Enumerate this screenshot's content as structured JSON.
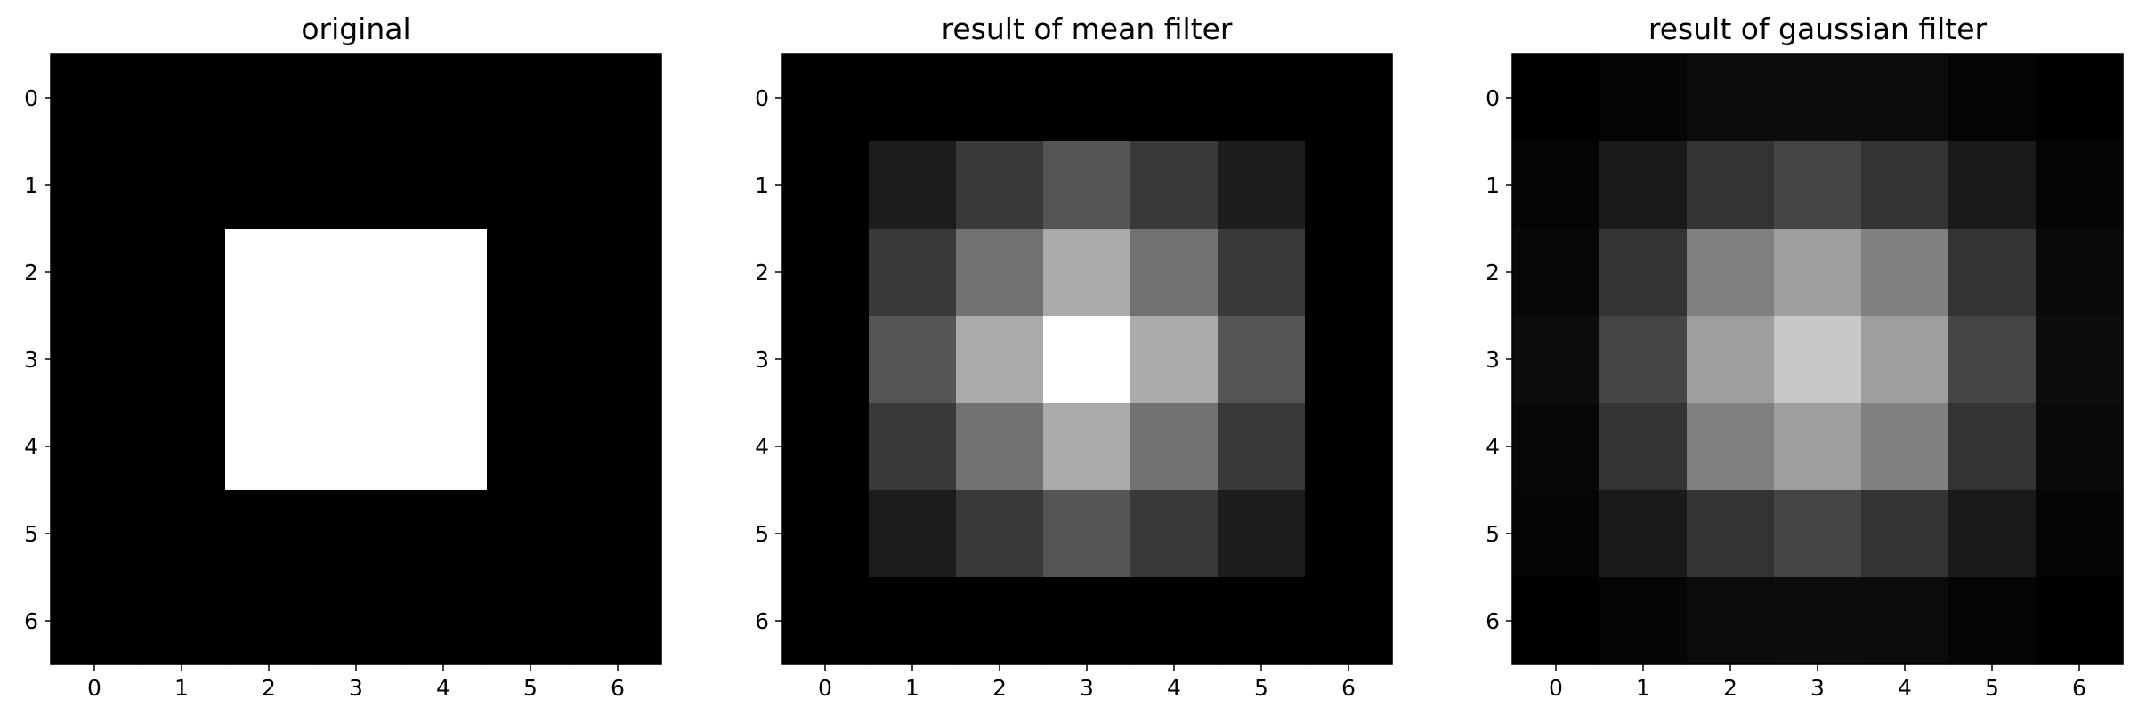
{
  "chart_data": [
    {
      "type": "heatmap",
      "title": "original",
      "colormap": "gray",
      "x_ticks": [
        "0",
        "1",
        "2",
        "3",
        "4",
        "5",
        "6"
      ],
      "y_ticks": [
        "0",
        "1",
        "2",
        "3",
        "4",
        "5",
        "6"
      ],
      "values": [
        [
          0,
          0,
          0,
          0,
          0,
          0,
          0
        ],
        [
          0,
          0,
          0,
          0,
          0,
          0,
          0
        ],
        [
          0,
          0,
          1,
          1,
          1,
          0,
          0
        ],
        [
          0,
          0,
          1,
          1,
          1,
          0,
          0
        ],
        [
          0,
          0,
          1,
          1,
          1,
          0,
          0
        ],
        [
          0,
          0,
          0,
          0,
          0,
          0,
          0
        ],
        [
          0,
          0,
          0,
          0,
          0,
          0,
          0
        ]
      ]
    },
    {
      "type": "heatmap",
      "title": "result of mean filter",
      "colormap": "gray",
      "x_ticks": [
        "0",
        "1",
        "2",
        "3",
        "4",
        "5",
        "6"
      ],
      "y_ticks": [
        "0",
        "1",
        "2",
        "3",
        "4",
        "5",
        "6"
      ],
      "values": [
        [
          0,
          0,
          0,
          0,
          0,
          0,
          0
        ],
        [
          0,
          0.111,
          0.222,
          0.333,
          0.222,
          0.111,
          0
        ],
        [
          0,
          0.222,
          0.444,
          0.667,
          0.444,
          0.222,
          0
        ],
        [
          0,
          0.333,
          0.667,
          1,
          0.667,
          0.333,
          0
        ],
        [
          0,
          0.222,
          0.444,
          0.667,
          0.444,
          0.222,
          0
        ],
        [
          0,
          0.111,
          0.222,
          0.333,
          0.222,
          0.111,
          0
        ],
        [
          0,
          0,
          0,
          0,
          0,
          0,
          0
        ]
      ]
    },
    {
      "type": "heatmap",
      "title": "result of gaussian filter",
      "colormap": "gray",
      "x_ticks": [
        "0",
        "1",
        "2",
        "3",
        "4",
        "5",
        "6"
      ],
      "y_ticks": [
        "0",
        "1",
        "2",
        "3",
        "4",
        "5",
        "6"
      ],
      "values": [
        [
          0.0,
          0.02,
          0.043,
          0.05,
          0.043,
          0.02,
          0.0
        ],
        [
          0.02,
          0.1,
          0.2,
          0.27,
          0.2,
          0.1,
          0.02
        ],
        [
          0.03,
          0.2,
          0.5,
          0.62,
          0.5,
          0.2,
          0.04
        ],
        [
          0.05,
          0.27,
          0.62,
          0.78,
          0.62,
          0.27,
          0.05
        ],
        [
          0.03,
          0.2,
          0.5,
          0.62,
          0.5,
          0.2,
          0.04
        ],
        [
          0.02,
          0.1,
          0.2,
          0.27,
          0.2,
          0.1,
          0.02
        ],
        [
          0.0,
          0.02,
          0.043,
          0.05,
          0.043,
          0.02,
          0.0
        ]
      ]
    }
  ]
}
